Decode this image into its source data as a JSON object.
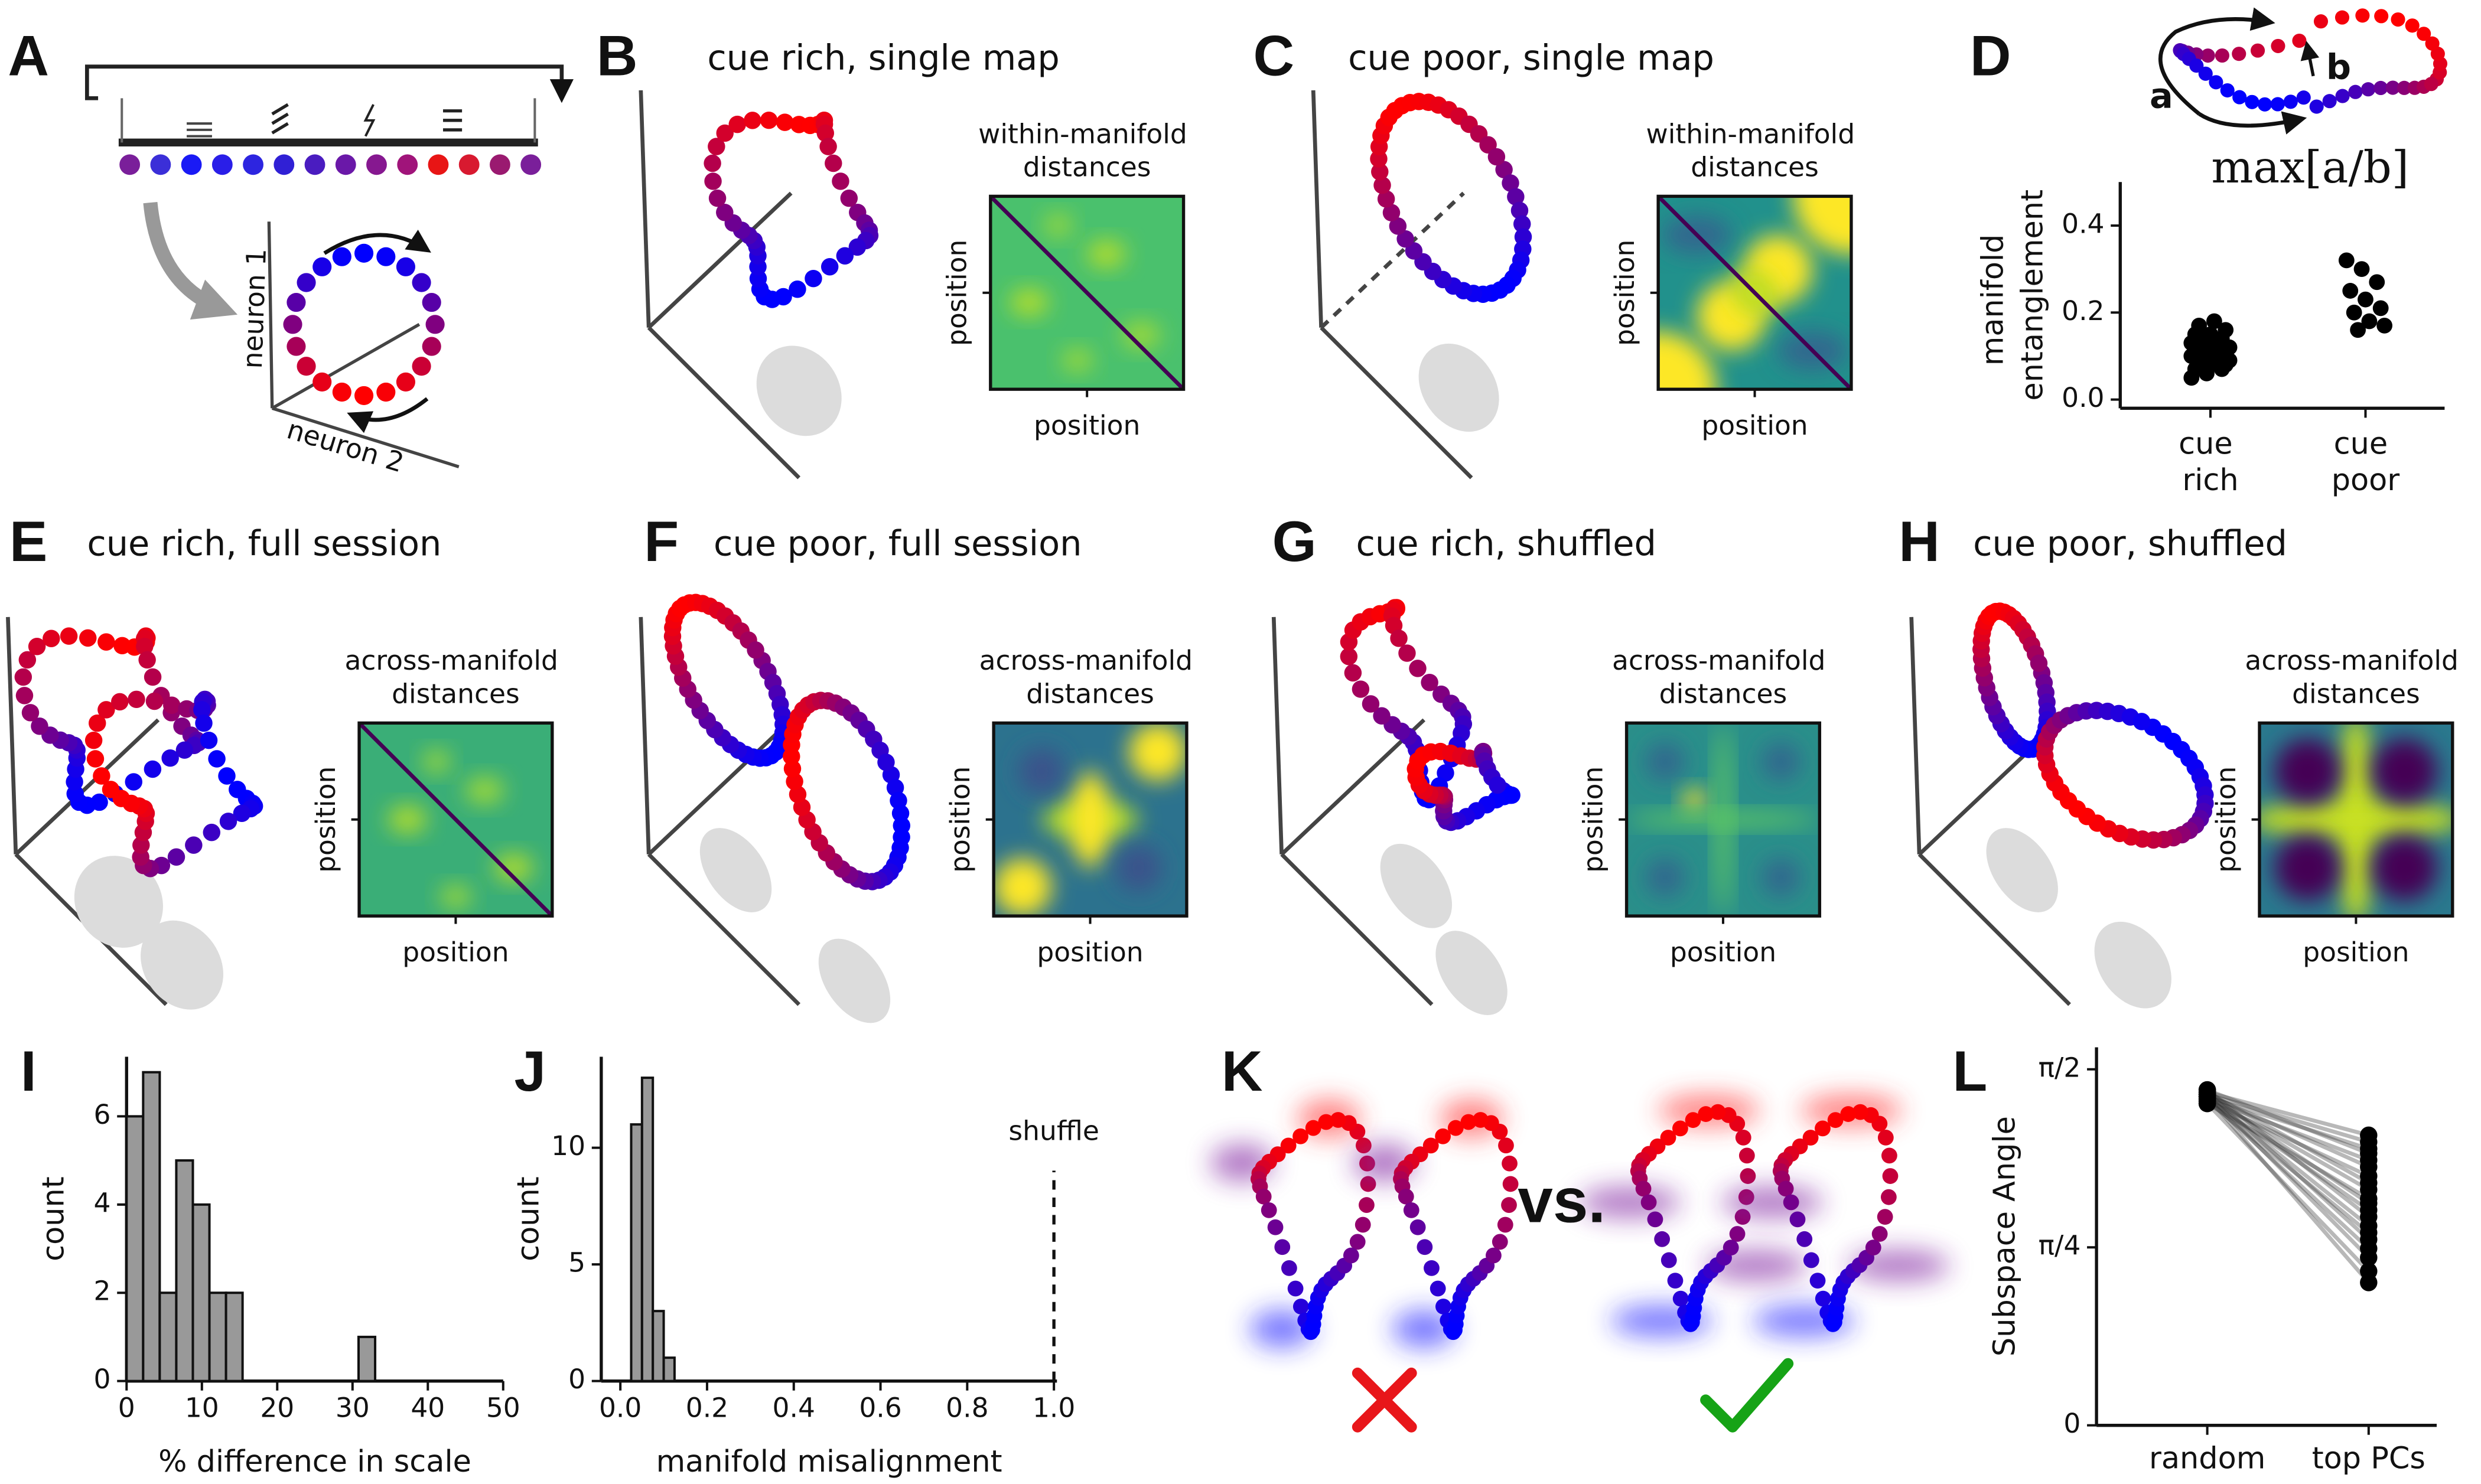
{
  "panel_labels": [
    "A",
    "B",
    "C",
    "D",
    "E",
    "F",
    "G",
    "H",
    "I",
    "J",
    "K",
    "L"
  ],
  "panel_a": {
    "y_axis": "neuron 1",
    "x_axis": "neuron 2"
  },
  "manifold_panels": [
    {
      "title": "cue rich, single map",
      "heatmap_title": "within-manifold distances",
      "x_label": "position",
      "y_label": "position"
    },
    {
      "title": "cue poor, single map",
      "heatmap_title": "within-manifold distances",
      "x_label": "position",
      "y_label": "position"
    },
    {
      "title": "cue rich, full session",
      "heatmap_title": "across-manifold distances",
      "x_label": "position",
      "y_label": "position"
    },
    {
      "title": "cue poor, full session",
      "heatmap_title": "across-manifold distances",
      "x_label": "position",
      "y_label": "position"
    },
    {
      "title": "cue rich, shuffled",
      "heatmap_title": "across-manifold distances",
      "x_label": "position",
      "y_label": "position"
    },
    {
      "title": "cue poor, shuffled",
      "heatmap_title": "across-manifold distances",
      "x_label": "position",
      "y_label": "position"
    }
  ],
  "panel_d_diagram": {
    "a": "a",
    "b": "b",
    "formula": "max[a/b]"
  },
  "panel_k": {
    "vs": "vs."
  },
  "chart_data": [
    {
      "type": "strip",
      "ylabel": "manifold entanglement",
      "categories": [
        "cue rich",
        "cue poor"
      ],
      "values": [
        [
          0.05,
          0.06,
          0.07,
          0.07,
          0.08,
          0.08,
          0.08,
          0.09,
          0.09,
          0.09,
          0.1,
          0.1,
          0.1,
          0.1,
          0.11,
          0.11,
          0.11,
          0.12,
          0.12,
          0.12,
          0.13,
          0.13,
          0.13,
          0.14,
          0.14,
          0.15,
          0.15,
          0.16,
          0.17,
          0.18
        ],
        [
          0.32,
          0.3,
          0.27,
          0.25,
          0.23,
          0.21,
          0.2,
          0.18,
          0.17,
          0.16
        ]
      ],
      "color": "#000000",
      "ylim": [
        -0.02,
        0.5
      ],
      "yticks": [
        {
          "value": 0,
          "label": "0.0"
        },
        0.2,
        0.4
      ]
    },
    {
      "type": "histogram",
      "xlabel": "% difference in scale",
      "ylabel": "count",
      "bins": [
        0,
        2.2,
        4.4,
        6.6,
        8.8,
        11,
        13.2,
        15.4,
        17.6,
        19.8,
        22,
        24.2,
        26.4,
        28.6,
        30.8,
        33
      ],
      "values": [
        6,
        7,
        2,
        5,
        4,
        2,
        2,
        0,
        0,
        0,
        0,
        0,
        0,
        0,
        1
      ],
      "color": "#999999",
      "xlim": [
        0,
        50
      ],
      "xticks": [
        0,
        10,
        20,
        30,
        40,
        50
      ],
      "ylim": [
        0,
        7.35
      ],
      "yticks": [
        0,
        2,
        4,
        6
      ]
    },
    {
      "type": "histogram",
      "xlabel": "manifold misalignment",
      "ylabel": "count",
      "bins": [
        0.025,
        0.05,
        0.075,
        0.1,
        0.125
      ],
      "values": [
        11,
        13,
        3,
        1
      ],
      "color": "#999999",
      "xlim": [
        -0.044,
        1.007
      ],
      "xticks": [
        {
          "value": 0,
          "label": "0.0"
        },
        0.2,
        0.4,
        0.6,
        0.8,
        {
          "value": 1,
          "label": "1.0"
        }
      ],
      "ylim": [
        0,
        13.9
      ],
      "yticks": [
        0,
        5,
        10
      ],
      "annotations": [
        {
          "text": "shuffle",
          "x": 1
        }
      ]
    },
    {
      "type": "paired",
      "ylabel": "Subspace Angle",
      "categories": [
        "random",
        "top PCs"
      ],
      "values": [
        [
          1.47,
          1.46,
          1.45,
          1.48,
          1.44,
          1.46,
          1.43,
          1.47,
          1.45,
          1.42,
          1.46,
          1.44,
          1.48,
          1.45,
          1.43,
          1.47,
          1.44,
          1.46,
          1.42,
          1.45
        ],
        [
          1.28,
          1.25,
          1.22,
          1.2,
          1.17,
          1.14,
          1.1,
          1.07,
          1.04,
          1.0,
          0.98,
          0.95,
          0.92,
          0.88,
          0.85,
          0.82,
          0.78,
          0.74,
          0.68,
          0.63
        ]
      ],
      "color": "#000000",
      "ylim": [
        0,
        1.668
      ],
      "yticks": [
        {
          "value": 0,
          "label": "0"
        },
        {
          "value": 0.785398,
          "label": "π/4"
        },
        {
          "value": 1.570796,
          "label": "π/2"
        }
      ]
    }
  ]
}
